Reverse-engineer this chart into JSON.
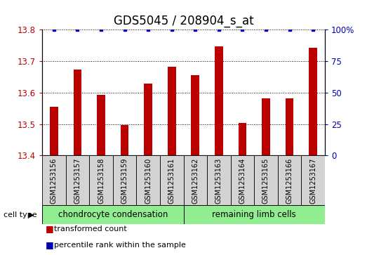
{
  "title": "GDS5045 / 208904_s_at",
  "samples": [
    "GSM1253156",
    "GSM1253157",
    "GSM1253158",
    "GSM1253159",
    "GSM1253160",
    "GSM1253161",
    "GSM1253162",
    "GSM1253163",
    "GSM1253164",
    "GSM1253165",
    "GSM1253166",
    "GSM1253167"
  ],
  "bar_values": [
    13.555,
    13.672,
    13.592,
    13.497,
    13.627,
    13.682,
    13.655,
    13.745,
    13.504,
    13.582,
    13.582,
    13.742
  ],
  "percentile_values": [
    100,
    100,
    100,
    100,
    100,
    100,
    100,
    100,
    100,
    100,
    100,
    100
  ],
  "bar_color": "#bb0000",
  "percentile_color": "#0000bb",
  "ylim_left": [
    13.4,
    13.8
  ],
  "ylim_right": [
    0,
    100
  ],
  "yticks_left": [
    13.4,
    13.5,
    13.6,
    13.7,
    13.8
  ],
  "yticks_right": [
    0,
    25,
    50,
    75,
    100
  ],
  "group1_label": "chondrocyte condensation",
  "group2_label": "remaining limb cells",
  "group1_count": 6,
  "group2_count": 6,
  "cell_type_label": "cell type",
  "legend_bar_label": "transformed count",
  "legend_dot_label": "percentile rank within the sample",
  "bg_color": "#ffffff",
  "sample_box_color": "#d3d3d3",
  "group_box_color": "#90ee90",
  "title_fontsize": 12,
  "tick_fontsize": 8.5,
  "sample_fontsize": 7,
  "group_fontsize": 8.5,
  "legend_fontsize": 8
}
